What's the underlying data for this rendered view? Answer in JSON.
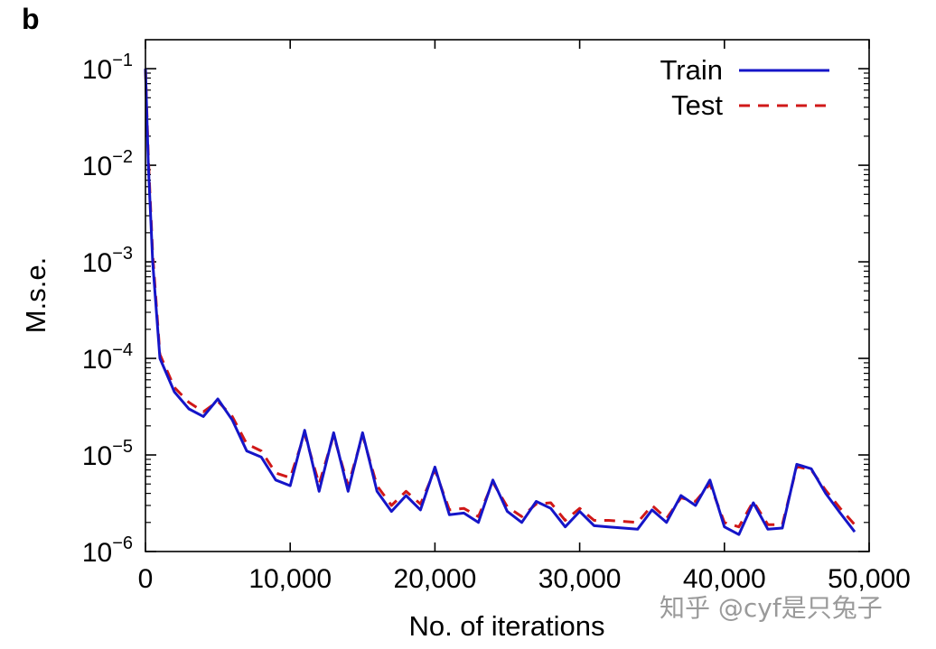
{
  "panel_label": "b",
  "watermark": "知乎 @cyf是只兔子",
  "colors": {
    "train": "#1515c8",
    "test": "#d01818",
    "axis": "#000000",
    "watermark": "#9a9a9a"
  },
  "chart_data": {
    "type": "line",
    "title": "",
    "xlabel": "No. of iterations",
    "ylabel": "M.s.e.",
    "xlim": [
      0,
      50000
    ],
    "ylim_log10": [
      -6,
      -0.7
    ],
    "yscale": "log",
    "xticks": [
      {
        "value": 0,
        "label": "0"
      },
      {
        "value": 10000,
        "label": "10,000"
      },
      {
        "value": 20000,
        "label": "20,000"
      },
      {
        "value": 30000,
        "label": "30,000"
      },
      {
        "value": 40000,
        "label": "40,000"
      },
      {
        "value": 50000,
        "label": "50,000"
      }
    ],
    "yticks": [
      {
        "exp": -1,
        "base": "10",
        "sup": "−1"
      },
      {
        "exp": -2,
        "base": "10",
        "sup": "−2"
      },
      {
        "exp": -3,
        "base": "10",
        "sup": "−3"
      },
      {
        "exp": -4,
        "base": "10",
        "sup": "−4"
      },
      {
        "exp": -5,
        "base": "10",
        "sup": "−5"
      },
      {
        "exp": -6,
        "base": "10",
        "sup": "−6"
      }
    ],
    "legend": {
      "position": "top-right",
      "entries": [
        "Train",
        "Test"
      ]
    },
    "series": [
      {
        "name": "Train",
        "style": "solid",
        "x": [
          0,
          200,
          500,
          1000,
          2000,
          3000,
          4000,
          5000,
          6000,
          7000,
          8000,
          9000,
          10000,
          11000,
          12000,
          13000,
          14000,
          15000,
          16000,
          17000,
          18000,
          19000,
          20000,
          21000,
          22000,
          23000,
          24000,
          25000,
          26000,
          27000,
          28000,
          29000,
          30000,
          31000,
          32000,
          33000,
          34000,
          35000,
          36000,
          37000,
          38000,
          39000,
          40000,
          41000,
          42000,
          43000,
          44000,
          45000,
          46000,
          47000,
          48000,
          49000
        ],
        "y": [
          0.1,
          0.01,
          0.001,
          0.0001,
          4.5e-05,
          3e-05,
          2.5e-05,
          3.8e-05,
          2.3e-05,
          1.1e-05,
          9.5e-06,
          5.5e-06,
          4.8e-06,
          1.8e-05,
          4.2e-06,
          1.7e-05,
          4.2e-06,
          1.7e-05,
          4.2e-06,
          2.6e-06,
          3.8e-06,
          2.7e-06,
          7.5e-06,
          2.4e-06,
          2.5e-06,
          2e-06,
          5.5e-06,
          2.6e-06,
          2e-06,
          3.3e-06,
          2.8e-06,
          1.8e-06,
          2.6e-06,
          1.85e-06,
          1.8e-06,
          1.75e-06,
          1.7e-06,
          2.7e-06,
          2e-06,
          3.8e-06,
          3e-06,
          5.5e-06,
          1.8e-06,
          1.5e-06,
          3.2e-06,
          1.7e-06,
          1.75e-06,
          8e-06,
          7.2e-06,
          4e-06,
          2.5e-06,
          1.6e-06
        ]
      },
      {
        "name": "Test",
        "style": "dashed",
        "x": [
          0,
          200,
          500,
          1000,
          2000,
          3000,
          4000,
          5000,
          6000,
          7000,
          8000,
          9000,
          10000,
          11000,
          12000,
          13000,
          14000,
          15000,
          16000,
          17000,
          18000,
          19000,
          20000,
          21000,
          22000,
          23000,
          24000,
          25000,
          26000,
          27000,
          28000,
          29000,
          30000,
          31000,
          32000,
          33000,
          34000,
          35000,
          36000,
          37000,
          38000,
          39000,
          40000,
          41000,
          42000,
          43000,
          44000,
          45000,
          46000,
          47000,
          48000,
          49000
        ],
        "y": [
          0.1,
          0.012,
          0.0012,
          0.00011,
          5e-05,
          3.5e-05,
          2.8e-05,
          3.6e-05,
          2.5e-05,
          1.3e-05,
          1.1e-05,
          6.5e-06,
          5.8e-06,
          1.65e-05,
          5e-06,
          1.6e-05,
          4.8e-06,
          1.6e-05,
          4.8e-06,
          3e-06,
          4.2e-06,
          3.1e-06,
          7e-06,
          2.7e-06,
          2.8e-06,
          2.3e-06,
          5.2e-06,
          2.9e-06,
          2.3e-06,
          3.1e-06,
          3.2e-06,
          2.1e-06,
          2.8e-06,
          2.1e-06,
          2.1e-06,
          2.05e-06,
          2e-06,
          3e-06,
          2.2e-06,
          3.6e-06,
          3.3e-06,
          5e-06,
          2e-06,
          1.8e-06,
          3.3e-06,
          1.9e-06,
          1.9e-06,
          7.6e-06,
          7e-06,
          4.3e-06,
          2.8e-06,
          1.9e-06
        ]
      }
    ]
  }
}
